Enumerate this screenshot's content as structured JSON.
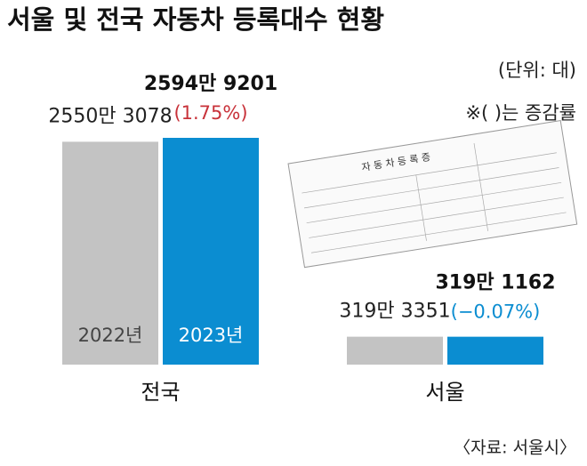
{
  "chart_data": {
    "type": "bar",
    "title": "서울 및 전국 자동차 등록대수 현황",
    "unit_note": "(단위: 대)",
    "change_note": "※(  )는 증감률",
    "source": "〈자료: 서울시〉",
    "certificate_title": "자 동 차 등 록 증",
    "categories": [
      "전국",
      "서울"
    ],
    "series": [
      {
        "name": "2022년",
        "color": "#c3c3c3",
        "values": [
          25503078,
          3193351
        ],
        "value_labels": [
          "2550만 3078",
          "319만 3351"
        ]
      },
      {
        "name": "2023년",
        "color": "#0b8dd1",
        "values": [
          25949201,
          3191162
        ],
        "value_labels": [
          "2594만 9201",
          "319만 1162"
        ],
        "change_labels": [
          "(1.75%)",
          "(−0.07%)"
        ],
        "change_colors": [
          "#c8323a",
          "#0b8dd1"
        ]
      }
    ]
  }
}
